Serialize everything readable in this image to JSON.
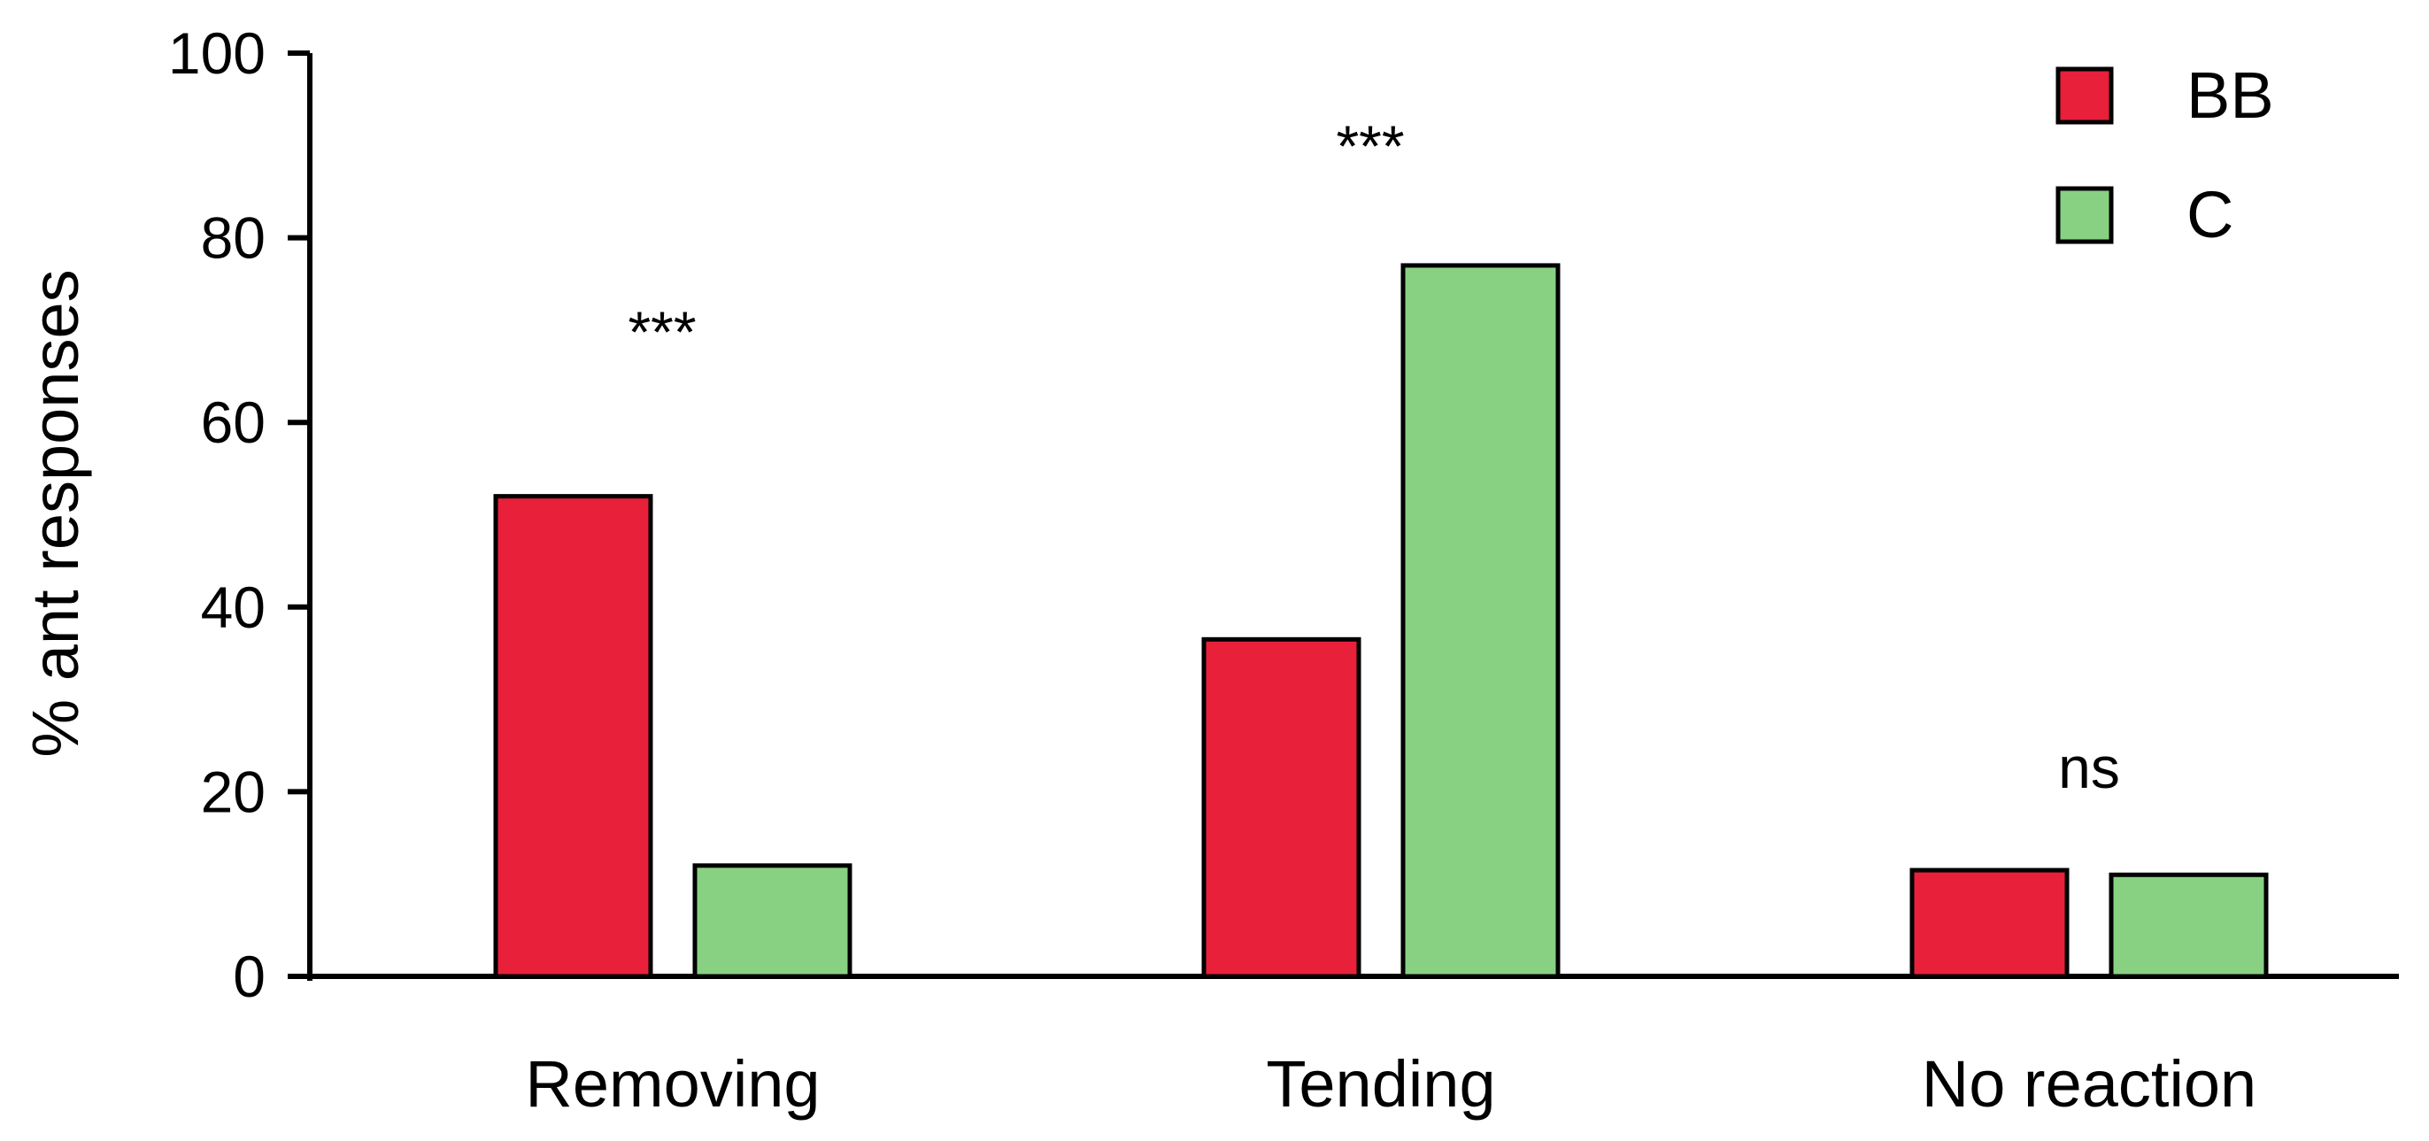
{
  "chart_data": {
    "type": "bar",
    "title": "",
    "xlabel": "",
    "ylabel": "% ant responses",
    "ylim": [
      0,
      100
    ],
    "yticks": [
      0,
      20,
      40,
      60,
      80,
      100
    ],
    "categories": [
      "Removing",
      "Tending",
      "No reaction"
    ],
    "series": [
      {
        "name": "BB",
        "color": "#e8203a",
        "values": [
          52,
          36.5,
          11.5
        ]
      },
      {
        "name": "C",
        "color": "#88d183",
        "values": [
          12,
          77,
          11
        ]
      }
    ],
    "significance": [
      "***",
      "***",
      "ns"
    ],
    "legend": {
      "position": "top-right"
    },
    "grid": false
  }
}
